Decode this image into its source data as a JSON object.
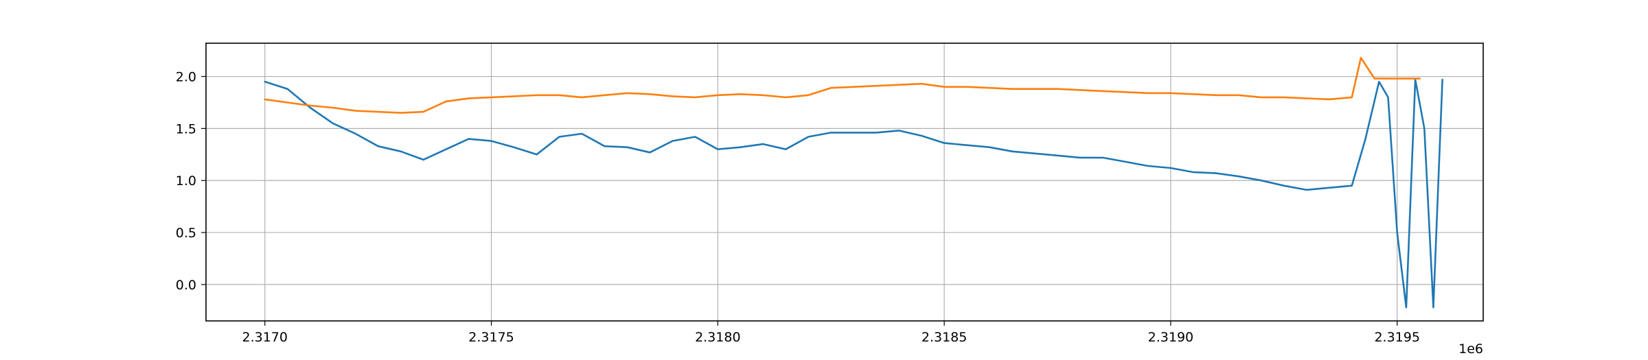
{
  "chart_data": {
    "type": "line",
    "title": "",
    "xlabel": "",
    "ylabel": "",
    "x_offset_label": "1e6",
    "xlim": [
      2.31687,
      2.31969
    ],
    "ylim": [
      -0.35,
      2.32
    ],
    "grid": true,
    "legend": "none",
    "x_ticks": [
      2.317,
      2.3175,
      2.318,
      2.3185,
      2.319,
      2.3195
    ],
    "x_tick_labels": [
      "2.3170",
      "2.3175",
      "2.3180",
      "2.3185",
      "2.3190",
      "2.3195"
    ],
    "y_ticks": [
      0.0,
      0.5,
      1.0,
      1.5,
      2.0
    ],
    "y_tick_labels": [
      "0.0",
      "0.5",
      "1.0",
      "1.5",
      "2.0"
    ],
    "series": [
      {
        "color": "#1f77b4",
        "x": [
          2.317,
          2.31705,
          2.3171,
          2.31715,
          2.3172,
          2.31725,
          2.3173,
          2.31735,
          2.3174,
          2.31745,
          2.3175,
          2.31755,
          2.3176,
          2.31765,
          2.3177,
          2.31775,
          2.3178,
          2.31785,
          2.3179,
          2.31795,
          2.318,
          2.31805,
          2.3181,
          2.31815,
          2.3182,
          2.31825,
          2.3183,
          2.31835,
          2.3184,
          2.31845,
          2.3185,
          2.31855,
          2.3186,
          2.31865,
          2.3187,
          2.31875,
          2.3188,
          2.31885,
          2.3189,
          2.31895,
          2.319,
          2.31905,
          2.3191,
          2.31915,
          2.3192,
          2.31925,
          2.3193,
          2.31935,
          2.3194,
          2.31943,
          2.31946,
          2.31948,
          2.3195,
          2.31952,
          2.31954,
          2.31956,
          2.31958,
          2.3196
        ],
        "y": [
          1.95,
          1.88,
          1.7,
          1.55,
          1.45,
          1.33,
          1.28,
          1.2,
          1.3,
          1.4,
          1.38,
          1.32,
          1.25,
          1.42,
          1.45,
          1.33,
          1.32,
          1.27,
          1.38,
          1.42,
          1.3,
          1.32,
          1.35,
          1.3,
          1.42,
          1.46,
          1.46,
          1.46,
          1.48,
          1.43,
          1.36,
          1.34,
          1.32,
          1.28,
          1.26,
          1.24,
          1.22,
          1.22,
          1.18,
          1.14,
          1.12,
          1.08,
          1.07,
          1.04,
          1.0,
          0.95,
          0.91,
          0.93,
          0.95,
          1.4,
          1.95,
          1.8,
          0.5,
          -0.22,
          1.97,
          1.5,
          -0.22,
          1.97
        ]
      },
      {
        "color": "#ff7f0e",
        "x": [
          2.317,
          2.31705,
          2.3171,
          2.31715,
          2.3172,
          2.31725,
          2.3173,
          2.31735,
          2.3174,
          2.31745,
          2.3175,
          2.31755,
          2.3176,
          2.31765,
          2.3177,
          2.31775,
          2.3178,
          2.31785,
          2.3179,
          2.31795,
          2.318,
          2.31805,
          2.3181,
          2.31815,
          2.3182,
          2.31825,
          2.3183,
          2.31835,
          2.3184,
          2.31845,
          2.3185,
          2.31855,
          2.3186,
          2.31865,
          2.3187,
          2.31875,
          2.3188,
          2.31885,
          2.3189,
          2.31895,
          2.319,
          2.31905,
          2.3191,
          2.31915,
          2.3192,
          2.31925,
          2.3193,
          2.31935,
          2.3194,
          2.31942,
          2.31945,
          2.3195,
          2.31955
        ],
        "y": [
          1.78,
          1.75,
          1.72,
          1.7,
          1.67,
          1.66,
          1.65,
          1.66,
          1.76,
          1.79,
          1.8,
          1.81,
          1.82,
          1.82,
          1.8,
          1.82,
          1.84,
          1.83,
          1.81,
          1.8,
          1.82,
          1.83,
          1.82,
          1.8,
          1.82,
          1.89,
          1.9,
          1.91,
          1.92,
          1.93,
          1.9,
          1.9,
          1.89,
          1.88,
          1.88,
          1.88,
          1.87,
          1.86,
          1.85,
          1.84,
          1.84,
          1.83,
          1.82,
          1.82,
          1.8,
          1.8,
          1.79,
          1.78,
          1.8,
          2.18,
          1.98,
          1.98,
          1.98
        ]
      }
    ]
  }
}
